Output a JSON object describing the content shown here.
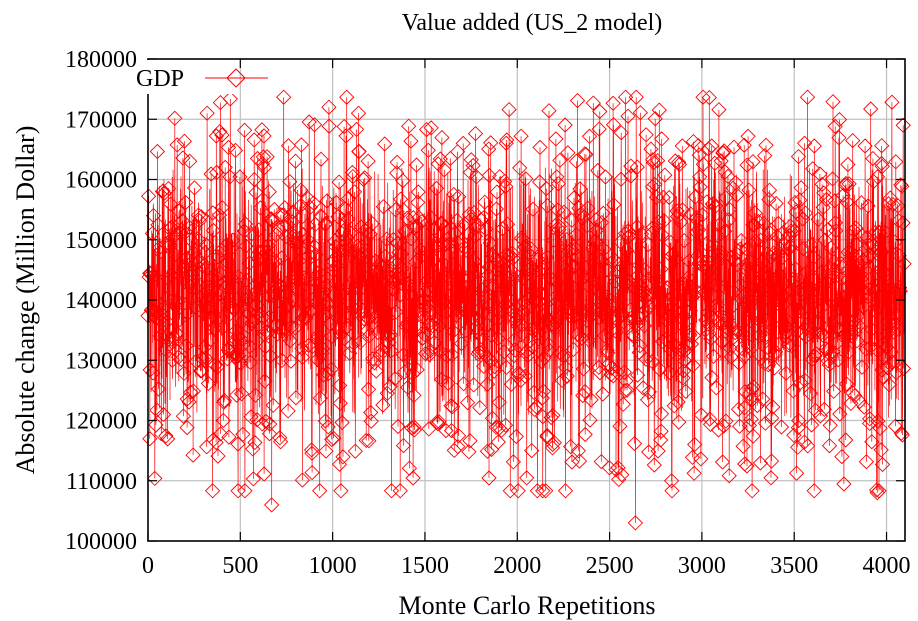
{
  "chart_data": {
    "type": "line",
    "title": "Value added (US_2 model)",
    "xlabel": "Monte Carlo Repetitions",
    "ylabel": "Absolute change (Million Dollar)",
    "xlim": [
      0,
      4100
    ],
    "ylim": [
      100000,
      180000
    ],
    "x_ticks": [
      "0",
      "500",
      "1000",
      "1500",
      "2000",
      "2500",
      "3000",
      "3500",
      "4000"
    ],
    "y_ticks": [
      "100000",
      "110000",
      "120000",
      "130000",
      "140000",
      "150000",
      "160000",
      "170000",
      "180000"
    ],
    "grid": true,
    "legend_position": "top-left",
    "series": [
      {
        "name": "GDP",
        "color": "#ff0000",
        "marker": "diamond",
        "n_points": 4096,
        "mean": 141000,
        "typical_range": [
          120000,
          162000
        ],
        "notable_points": [
          {
            "x": 320,
            "y": 171000
          },
          {
            "x": 670,
            "y": 106000
          },
          {
            "x": 980,
            "y": 172000
          },
          {
            "x": 1140,
            "y": 171000
          },
          {
            "x": 2600,
            "y": 170500
          },
          {
            "x": 2640,
            "y": 103000
          },
          {
            "x": 3950,
            "y": 108000
          },
          {
            "x": 4090,
            "y": 169000
          }
        ]
      }
    ]
  }
}
